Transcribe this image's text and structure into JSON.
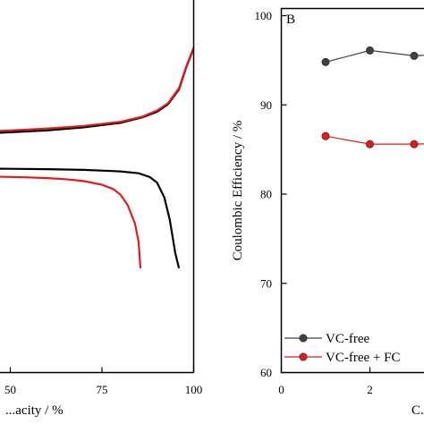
{
  "chart_data": [
    {
      "panel": "A",
      "type": "line",
      "xlabel": "...acity / %",
      "xlim": [
        30,
        100
      ],
      "x_ticks": [
        50,
        75,
        100
      ],
      "series": [
        {
          "color": "#000000",
          "segments": [
            {
              "x": [
                30,
                40,
                50,
                60,
                70,
                80,
                86,
                90,
                93,
                96,
                98,
                100
              ],
              "y": [
                0.63,
                0.64,
                0.645,
                0.65,
                0.658,
                0.67,
                0.685,
                0.7,
                0.72,
                0.76,
                0.82,
                0.87
              ]
            },
            {
              "x": [
                30,
                40,
                50,
                60,
                70,
                80,
                85,
                88,
                90,
                92,
                93.5,
                95,
                96
              ],
              "y": [
                0.55,
                0.548,
                0.547,
                0.546,
                0.544,
                0.54,
                0.535,
                0.525,
                0.51,
                0.47,
                0.41,
                0.32,
                0.28
              ]
            }
          ]
        },
        {
          "color": "#e31a1c",
          "segments": [
            {
              "x": [
                30,
                40,
                50,
                60,
                70,
                80,
                86,
                90,
                93,
                96,
                98,
                100
              ],
              "y": [
                0.635,
                0.645,
                0.65,
                0.655,
                0.662,
                0.673,
                0.687,
                0.703,
                0.723,
                0.763,
                0.822,
                0.872
              ]
            },
            {
              "x": [
                30,
                35,
                40,
                45,
                50,
                55,
                60,
                65,
                70,
                75,
                78,
                80,
                82,
                84,
                85,
                85.5
              ],
              "y": [
                0.53,
                0.528,
                0.527,
                0.526,
                0.525,
                0.524,
                0.522,
                0.519,
                0.514,
                0.504,
                0.493,
                0.478,
                0.45,
                0.4,
                0.35,
                0.28
              ]
            }
          ]
        }
      ]
    },
    {
      "panel": "B",
      "type": "line",
      "ylabel": "Coulombic Efficiency / %",
      "xlabel": "C...",
      "ylim": [
        60,
        100
      ],
      "y_ticks": [
        60,
        70,
        80,
        90,
        100
      ],
      "x_ticks": [
        0,
        2
      ],
      "series": [
        {
          "name": "VC-free",
          "color": "#404040",
          "x": [
            1,
            2,
            3,
            4
          ],
          "y": [
            94.8,
            96.1,
            95.5,
            95.8
          ]
        },
        {
          "name": "VC-free + FC",
          "color": "#e31a1c",
          "x": [
            1,
            2,
            3,
            4
          ],
          "y": [
            86.5,
            85.6,
            85.6,
            85.7
          ]
        }
      ]
    }
  ]
}
